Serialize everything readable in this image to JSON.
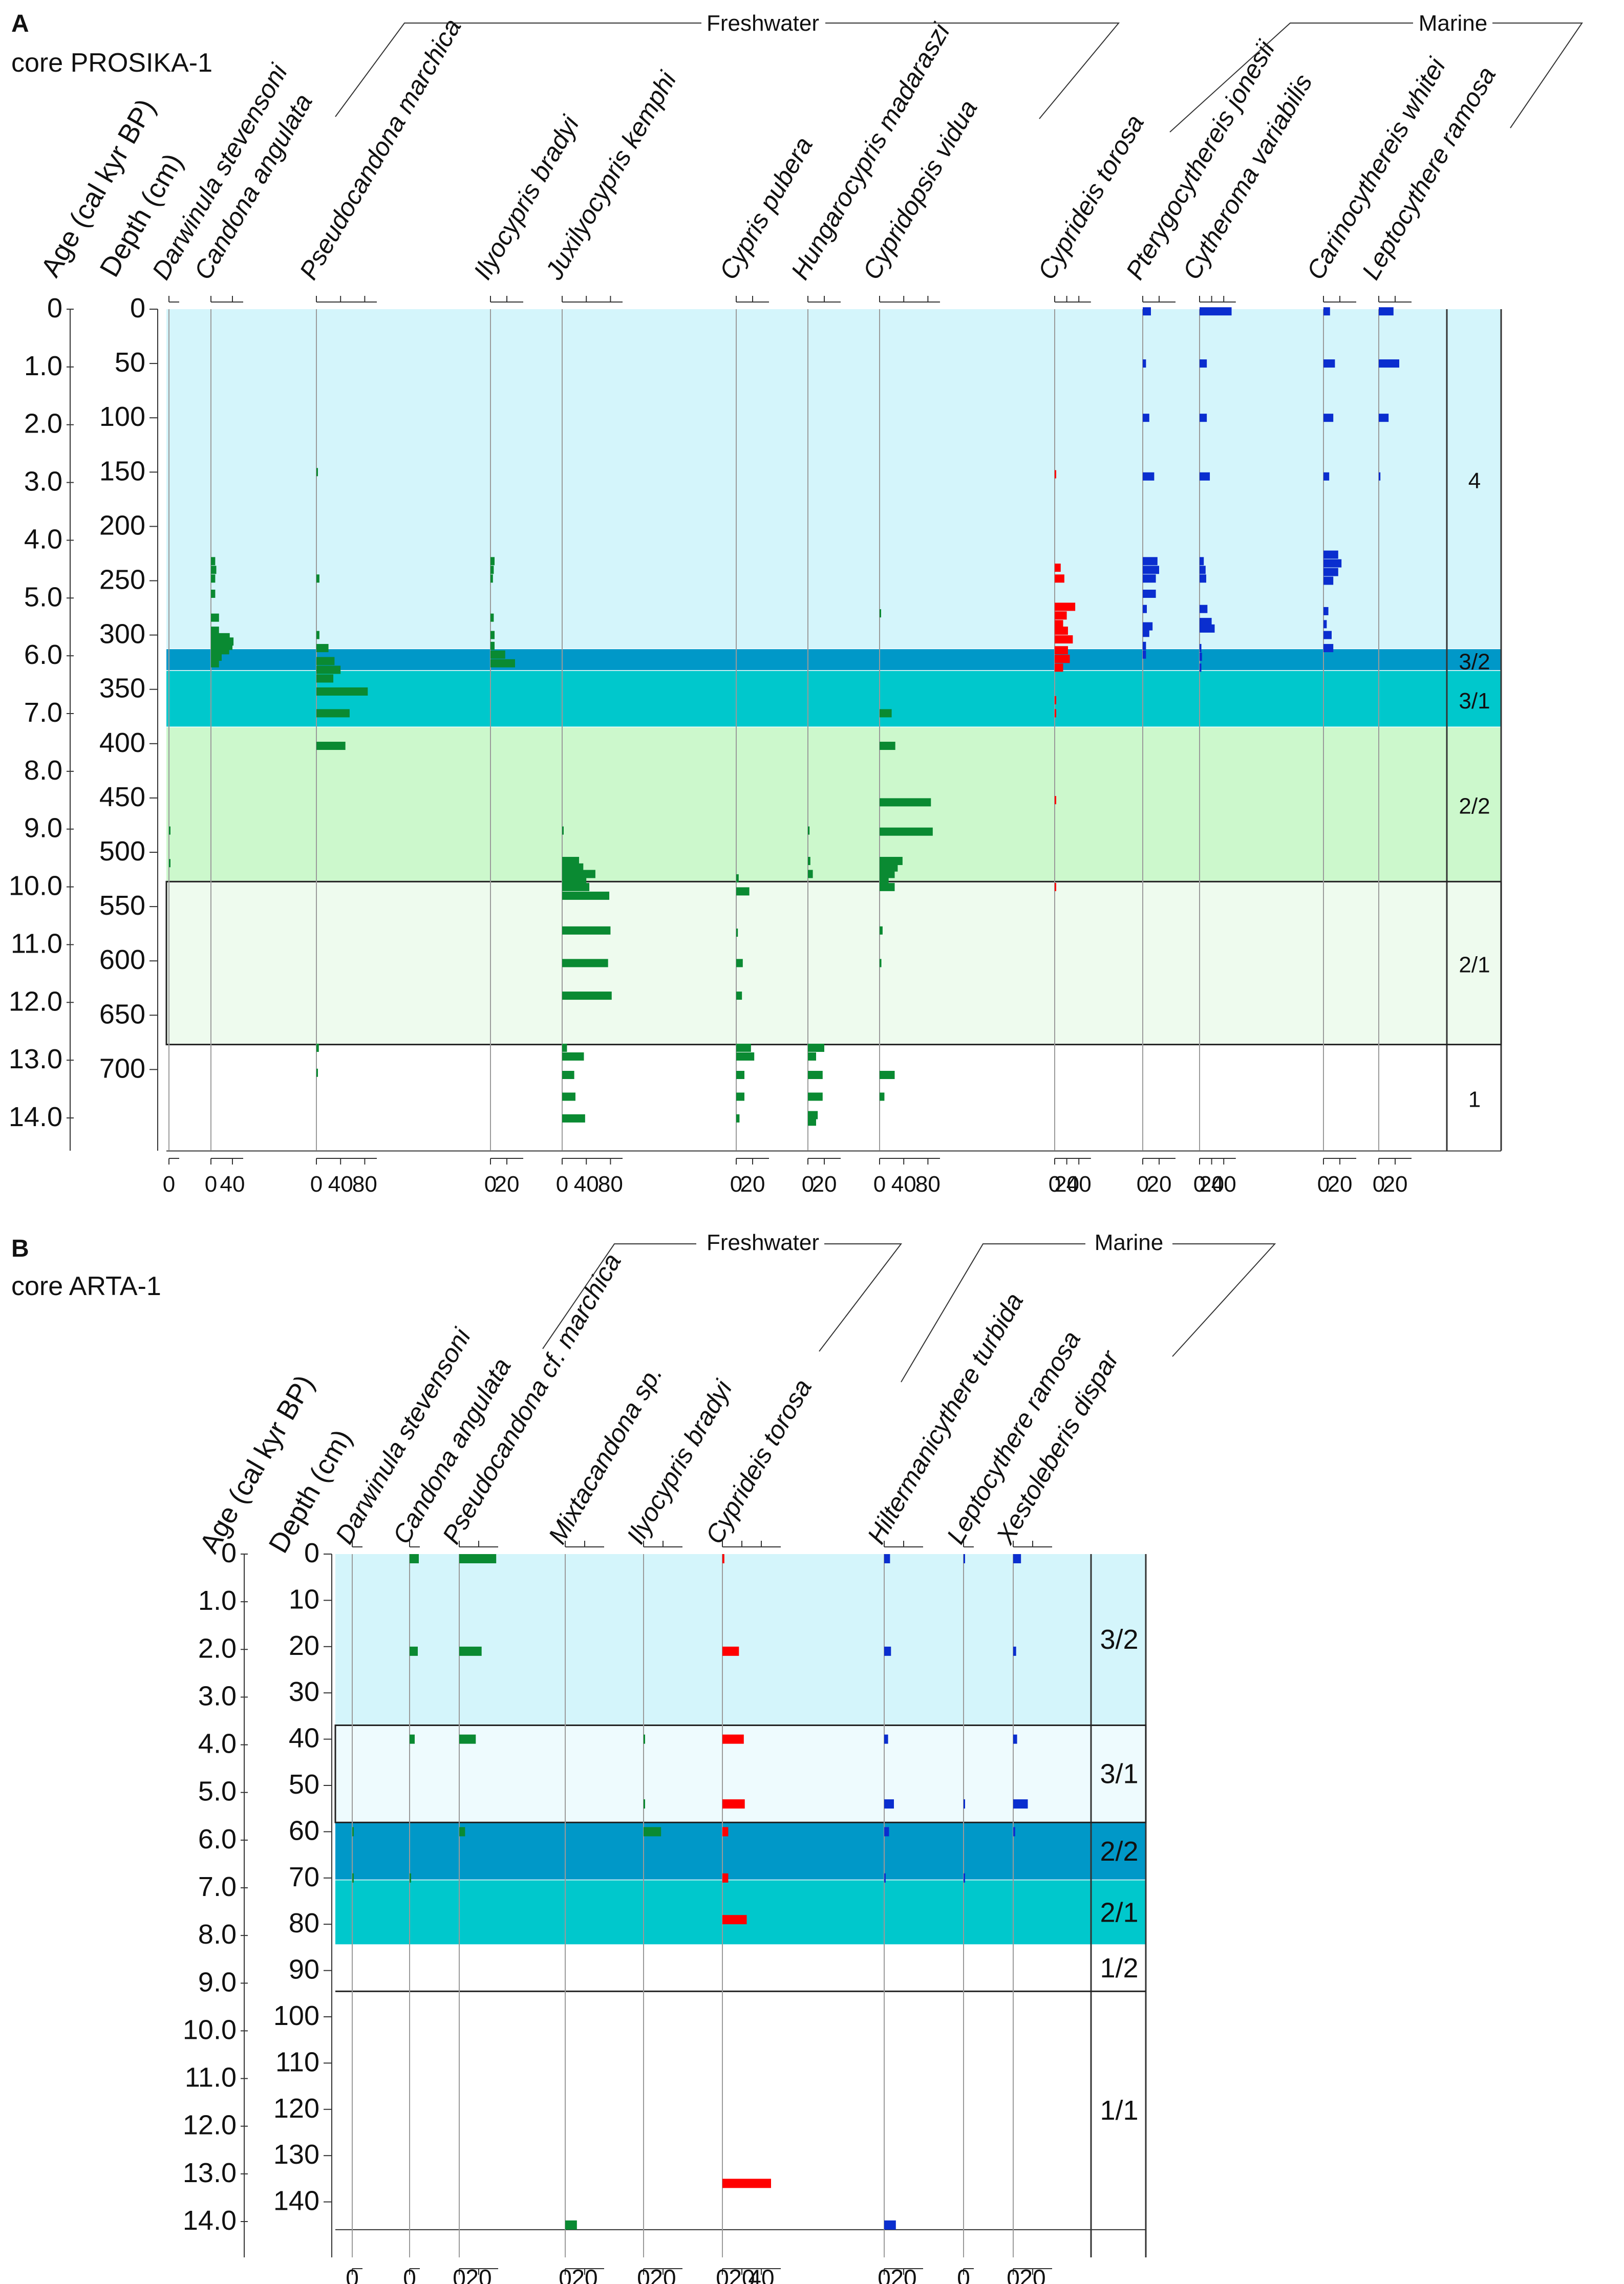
{
  "colors": {
    "freshwater": "#0a8a32",
    "brackish": "#ff0000",
    "marine": "#0a2ecf",
    "zone4": "#d4f5fb",
    "zone32": "#0098c8",
    "zone31": "#00c8cc",
    "zone22": "#ccf8cc",
    "zone21": "#eefbee",
    "zoneB32": "#d4f5fb",
    "zoneB31": "#eefbfe",
    "zoneB22": "#0098c8",
    "zoneB21": "#00c8cc"
  },
  "chart_data": [
    {
      "type": "bar",
      "panel": "A",
      "title": "core PROSIKA-1",
      "groups": [
        "Freshwater",
        "Marine"
      ],
      "age_label": "Age (cal kyr BP)",
      "depth_label": "Depth (cm)",
      "ages": [
        "0",
        "1.0",
        "2.0",
        "3.0",
        "4.0",
        "5.0",
        "6.0",
        "7.0",
        "8.0",
        "9.0",
        "10.0",
        "11.0",
        "12.0",
        "13.0",
        "14.0"
      ],
      "depths": [
        "0",
        "50",
        "100",
        "150",
        "200",
        "250",
        "300",
        "350",
        "400",
        "450",
        "500",
        "550",
        "600",
        "650",
        "700"
      ],
      "ylim": [
        0,
        775
      ],
      "zones": [
        {
          "label": "4",
          "top": 0,
          "bottom": 313
        },
        {
          "label": "3/2",
          "top": 313,
          "bottom": 333
        },
        {
          "label": "3/1",
          "top": 333,
          "bottom": 385
        },
        {
          "label": "2/2",
          "top": 385,
          "bottom": 527
        },
        {
          "label": "2/1",
          "top": 527,
          "bottom": 677
        },
        {
          "label": "1",
          "top": 677,
          "bottom": 775
        }
      ],
      "taxa": [
        {
          "name": "Darwinula stevensoni",
          "group": "freshwater",
          "ticks": [
            "0"
          ],
          "bars": [
            [
              480,
              2
            ],
            [
              510,
              3
            ]
          ]
        },
        {
          "name": "Candona angulata",
          "group": "freshwater",
          "ticks": [
            "0",
            "40"
          ],
          "bars": [
            [
              232,
              8
            ],
            [
              240,
              10
            ],
            [
              248,
              8
            ],
            [
              262,
              8
            ],
            [
              284,
              15
            ],
            [
              296,
              15
            ],
            [
              302,
              35
            ],
            [
              306,
              42
            ],
            [
              310,
              40
            ],
            [
              314,
              34
            ],
            [
              320,
              20
            ],
            [
              326,
              15
            ]
          ]
        },
        {
          "name": "Pseudocandona marchica",
          "group": "freshwater",
          "ticks": [
            "0",
            "40",
            "80"
          ],
          "bars": [
            [
              150,
              2
            ],
            [
              248,
              5
            ],
            [
              300,
              5
            ],
            [
              312,
              20
            ],
            [
              324,
              30
            ],
            [
              332,
              40
            ],
            [
              340,
              28
            ],
            [
              352,
              85
            ],
            [
              372,
              55
            ],
            [
              402,
              48
            ],
            [
              680,
              4
            ],
            [
              703,
              2
            ]
          ]
        },
        {
          "name": "Ilyocypris bradyi",
          "group": "freshwater",
          "ticks": [
            "0",
            "20"
          ],
          "bars": [
            [
              232,
              5
            ],
            [
              240,
              4
            ],
            [
              248,
              3
            ],
            [
              284,
              4
            ],
            [
              300,
              5
            ],
            [
              310,
              5
            ],
            [
              318,
              18
            ],
            [
              326,
              30
            ]
          ]
        },
        {
          "name": "Juxilyocypris kemphi",
          "group": "freshwater",
          "ticks": [
            "0",
            "40",
            "80"
          ],
          "bars": [
            [
              480,
              2
            ],
            [
              508,
              28
            ],
            [
              514,
              35
            ],
            [
              520,
              55
            ],
            [
              526,
              40
            ],
            [
              532,
              45
            ],
            [
              540,
              78
            ],
            [
              572,
              80
            ],
            [
              602,
              76
            ],
            [
              632,
              82
            ],
            [
              680,
              8
            ],
            [
              688,
              36
            ],
            [
              705,
              20
            ],
            [
              725,
              22
            ],
            [
              745,
              38
            ]
          ]
        },
        {
          "name": "Cypris pubera",
          "group": "freshwater",
          "ticks": [
            "0",
            "20"
          ],
          "bars": [
            [
              524,
              3
            ],
            [
              536,
              16
            ],
            [
              574,
              2
            ],
            [
              602,
              8
            ],
            [
              632,
              7
            ],
            [
              680,
              18
            ],
            [
              688,
              22
            ],
            [
              705,
              10
            ],
            [
              725,
              10
            ],
            [
              745,
              4
            ]
          ]
        },
        {
          "name": "Hungarocypris madaraszi",
          "group": "freshwater",
          "ticks": [
            "0",
            "20"
          ],
          "bars": [
            [
              480,
              2
            ],
            [
              508,
              3
            ],
            [
              520,
              6
            ],
            [
              680,
              20
            ],
            [
              688,
              10
            ],
            [
              705,
              18
            ],
            [
              725,
              18
            ],
            [
              742,
              12
            ],
            [
              748,
              10
            ]
          ]
        },
        {
          "name": "Cypridopsis vidua",
          "group": "freshwater",
          "ticks": [
            "0",
            "40",
            "80"
          ],
          "bars": [
            [
              280,
              2
            ],
            [
              372,
              20
            ],
            [
              402,
              26
            ],
            [
              454,
              85
            ],
            [
              481,
              88
            ],
            [
              508,
              38
            ],
            [
              514,
              30
            ],
            [
              520,
              25
            ],
            [
              526,
              15
            ],
            [
              532,
              25
            ],
            [
              572,
              5
            ],
            [
              602,
              3
            ],
            [
              705,
              25
            ],
            [
              725,
              8
            ]
          ]
        },
        {
          "name": "Cyprideis torosa",
          "group": "brackish",
          "ticks": [
            "0",
            "20",
            "40"
          ],
          "bars": [
            [
              152,
              2
            ],
            [
              238,
              10
            ],
            [
              248,
              16
            ],
            [
              274,
              34
            ],
            [
              282,
              20
            ],
            [
              290,
              14
            ],
            [
              296,
              22
            ],
            [
              304,
              30
            ],
            [
              314,
              22
            ],
            [
              322,
              25
            ],
            [
              330,
              14
            ],
            [
              360,
              2
            ],
            [
              372,
              1
            ],
            [
              452,
              2
            ],
            [
              532,
              2
            ]
          ]
        },
        {
          "name": "Pterygocythereis jonesii",
          "group": "marine",
          "ticks": [
            "0",
            "20"
          ],
          "bars": [
            [
              2,
              10
            ],
            [
              50,
              4
            ],
            [
              100,
              8
            ],
            [
              154,
              14
            ],
            [
              232,
              18
            ],
            [
              240,
              20
            ],
            [
              248,
              16
            ],
            [
              262,
              16
            ],
            [
              276,
              5
            ],
            [
              292,
              12
            ],
            [
              298,
              8
            ],
            [
              310,
              4
            ],
            [
              318,
              4
            ]
          ]
        },
        {
          "name": "Cytheroma variabilis",
          "group": "marine",
          "ticks": [
            "0",
            "20",
            "40"
          ],
          "bars": [
            [
              2,
              53
            ],
            [
              50,
              12
            ],
            [
              100,
              12
            ],
            [
              154,
              17
            ],
            [
              232,
              7
            ],
            [
              240,
              10
            ],
            [
              248,
              11
            ],
            [
              276,
              13
            ],
            [
              288,
              20
            ],
            [
              294,
              25
            ],
            [
              312,
              3
            ],
            [
              320,
              4
            ],
            [
              330,
              3
            ]
          ]
        },
        {
          "name": "Carinocythereis whitei",
          "group": "marine",
          "ticks": [
            "0",
            "20"
          ],
          "bars": [
            [
              2,
              8
            ],
            [
              50,
              14
            ],
            [
              100,
              12
            ],
            [
              154,
              7
            ],
            [
              226,
              18
            ],
            [
              234,
              22
            ],
            [
              242,
              18
            ],
            [
              250,
              12
            ],
            [
              278,
              6
            ],
            [
              290,
              4
            ],
            [
              300,
              10
            ],
            [
              312,
              12
            ]
          ]
        },
        {
          "name": "Leptocythere ramosa",
          "group": "marine",
          "ticks": [
            "0",
            "20"
          ],
          "bars": [
            [
              2,
              18
            ],
            [
              50,
              25
            ],
            [
              100,
              12
            ],
            [
              154,
              2
            ]
          ]
        }
      ]
    },
    {
      "type": "bar",
      "panel": "B",
      "title": "core ARTA-1",
      "groups": [
        "Freshwater",
        "Marine"
      ],
      "age_label": "Age (cal kyr BP)",
      "depth_label": "Depth (cm)",
      "ages": [
        "0",
        "1.0",
        "2.0",
        "3.0",
        "4.0",
        "5.0",
        "6.0",
        "7.0",
        "8.0",
        "9.0",
        "10.0",
        "11.0",
        "12.0",
        "13.0",
        "14.0"
      ],
      "depths": [
        "0",
        "10",
        "20",
        "30",
        "40",
        "50",
        "60",
        "70",
        "80",
        "90",
        "100",
        "110",
        "120",
        "130",
        "140"
      ],
      "ylim": [
        0,
        146
      ],
      "zones": [
        {
          "label": "3/2",
          "top": 0,
          "bottom": 37
        },
        {
          "label": "3/1",
          "top": 37,
          "bottom": 58
        },
        {
          "label": "2/2",
          "top": 58,
          "bottom": 70.5
        },
        {
          "label": "2/1",
          "top": 70.5,
          "bottom": 84.5
        },
        {
          "label": "1/2",
          "top": 84.5,
          "bottom": 94.5
        },
        {
          "label": "1/1",
          "top": 94.5,
          "bottom": 146
        }
      ],
      "taxa": [
        {
          "name": "Darwinula stevensoni",
          "group": "freshwater",
          "ticks": [
            "0"
          ],
          "bars": [
            [
              60,
              3
            ],
            [
              70,
              3
            ]
          ]
        },
        {
          "name": "Candona angulata",
          "group": "freshwater",
          "ticks": [
            "0"
          ],
          "bars": [
            [
              1,
              18
            ],
            [
              21,
              16
            ],
            [
              40,
              10
            ],
            [
              70,
              2
            ]
          ]
        },
        {
          "name": "Pseudocandona cf. marchica",
          "group": "freshwater",
          "ticks": [
            "0",
            "20"
          ],
          "bars": [
            [
              1,
              38
            ],
            [
              21,
              23
            ],
            [
              40,
              17
            ],
            [
              60,
              6
            ]
          ]
        },
        {
          "name": "Mixtacandona sp.",
          "group": "freshwater",
          "ticks": [
            "0",
            "20"
          ],
          "bars": [
            [
              145,
              12
            ]
          ]
        },
        {
          "name": "Ilyocypris bradyi",
          "group": "freshwater",
          "ticks": [
            "0",
            "20"
          ],
          "bars": [
            [
              40,
              1
            ],
            [
              54,
              1
            ],
            [
              60,
              18
            ]
          ]
        },
        {
          "name": "Cyprideis torosa",
          "group": "brackish",
          "ticks": [
            "0",
            "20",
            "40"
          ],
          "bars": [
            [
              1,
              2
            ],
            [
              21,
              17
            ],
            [
              40,
              22
            ],
            [
              54,
              23
            ],
            [
              60,
              6
            ],
            [
              70,
              6
            ],
            [
              79,
              25
            ],
            [
              136,
              50
            ]
          ]
        },
        {
          "name": "Hiltermanicythere turbida",
          "group": "marine",
          "ticks": [
            "0",
            "20"
          ],
          "bars": [
            [
              1,
              6
            ],
            [
              21,
              7
            ],
            [
              40,
              4
            ],
            [
              54,
              10
            ],
            [
              60,
              5
            ],
            [
              70,
              1
            ],
            [
              145,
              12
            ]
          ]
        },
        {
          "name": "Leptocythere ramosa",
          "group": "marine",
          "ticks": [
            "0"
          ],
          "bars": [
            [
              1,
              3
            ],
            [
              54,
              3
            ],
            [
              70,
              3
            ]
          ]
        },
        {
          "name": "Xestoleberis dispar",
          "group": "marine",
          "ticks": [
            "0",
            "20"
          ],
          "bars": [
            [
              1,
              8
            ],
            [
              21,
              3
            ],
            [
              40,
              4
            ],
            [
              54,
              15
            ],
            [
              60,
              2
            ]
          ]
        }
      ]
    }
  ]
}
